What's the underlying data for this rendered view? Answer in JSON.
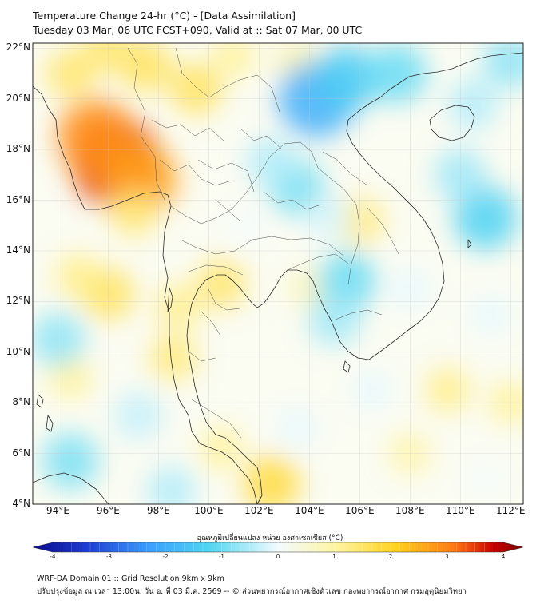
{
  "title": {
    "line1": "Temperature Change 24-hr (°C) - [Data Assimilation]",
    "line2": "Tuesday 03 Mar, 06 UTC FCST+090, Valid at :: Sat 07 Mar, 00 UTC"
  },
  "map_extent": {
    "lon_min": 93,
    "lon_max": 112.5,
    "lat_min": 4,
    "lat_max": 22.2
  },
  "axes": {
    "lat_ticks": [
      {
        "value": 22,
        "label": "22°N"
      },
      {
        "value": 20,
        "label": "20°N"
      },
      {
        "value": 18,
        "label": "18°N"
      },
      {
        "value": 16,
        "label": "16°N"
      },
      {
        "value": 14,
        "label": "14°N"
      },
      {
        "value": 12,
        "label": "12°N"
      },
      {
        "value": 10,
        "label": "10°N"
      },
      {
        "value": 8,
        "label": "8°N"
      },
      {
        "value": 6,
        "label": "6°N"
      },
      {
        "value": 4,
        "label": "4°N"
      }
    ],
    "lon_ticks": [
      {
        "value": 94,
        "label": "94°E"
      },
      {
        "value": 96,
        "label": "96°E"
      },
      {
        "value": 98,
        "label": "98°E"
      },
      {
        "value": 100,
        "label": "100°E"
      },
      {
        "value": 102,
        "label": "102°E"
      },
      {
        "value": 104,
        "label": "104°E"
      },
      {
        "value": 106,
        "label": "106°E"
      },
      {
        "value": 108,
        "label": "108°E"
      },
      {
        "value": 110,
        "label": "110°E"
      },
      {
        "value": 112,
        "label": "112°E"
      }
    ]
  },
  "colorbar": {
    "label": "อุณหภูมิเปลี่ยนแปลง หน่วย องศาเซลเซียส (°C)",
    "min": -4,
    "max": 4,
    "ticks": [
      "-4",
      "-3",
      "-2",
      "-1",
      "0",
      "1",
      "2",
      "3",
      "4"
    ],
    "colors": [
      "#0a0a8c",
      "#1e3cd2",
      "#3ca0ff",
      "#50d6f2",
      "#f2fbff",
      "#fff4a0",
      "#ffd21e",
      "#ff7814",
      "#c80000",
      "#780000"
    ]
  },
  "field_anomalies": [
    {
      "lon": 96.3,
      "lat": 17.5,
      "value": 2.6
    },
    {
      "lon": 95.5,
      "lat": 18.5,
      "value": 2.0
    },
    {
      "lon": 97.3,
      "lat": 16.8,
      "value": 1.8
    },
    {
      "lon": 97.5,
      "lat": 21.3,
      "value": 0.9
    },
    {
      "lon": 99.5,
      "lat": 20.4,
      "value": 0.9
    },
    {
      "lon": 96.0,
      "lat": 22.0,
      "value": 0.8
    },
    {
      "lon": 94.5,
      "lat": 21.0,
      "value": 0.8
    },
    {
      "lon": 97.0,
      "lat": 15.5,
      "value": 0.7
    },
    {
      "lon": 96.0,
      "lat": 12.3,
      "value": 0.9
    },
    {
      "lon": 100.5,
      "lat": 12.7,
      "value": 0.8
    },
    {
      "lon": 98.8,
      "lat": 11.8,
      "value": 0.6
    },
    {
      "lon": 98.6,
      "lat": 9.8,
      "value": 0.7
    },
    {
      "lon": 94.8,
      "lat": 13.0,
      "value": 0.6
    },
    {
      "lon": 94.5,
      "lat": 9.0,
      "value": 0.5
    },
    {
      "lon": 102.5,
      "lat": 4.8,
      "value": 1.1
    },
    {
      "lon": 100.5,
      "lat": 6.2,
      "value": 0.5
    },
    {
      "lon": 106.0,
      "lat": 15.2,
      "value": 0.7
    },
    {
      "lon": 104.0,
      "lat": 12.5,
      "value": 0.3
    },
    {
      "lon": 109.5,
      "lat": 8.5,
      "value": 0.6
    },
    {
      "lon": 112.0,
      "lat": 8.0,
      "value": 0.5
    },
    {
      "lon": 108.0,
      "lat": 6.0,
      "value": 0.4
    },
    {
      "lon": 101.0,
      "lat": 21.7,
      "value": 0.5
    },
    {
      "lon": 103.5,
      "lat": 21.5,
      "value": 0.4
    },
    {
      "lon": 104.3,
      "lat": 20.0,
      "value": -2.0
    },
    {
      "lon": 105.5,
      "lat": 20.8,
      "value": -1.5
    },
    {
      "lon": 107.5,
      "lat": 21.0,
      "value": -1.2
    },
    {
      "lon": 111.0,
      "lat": 15.3,
      "value": -1.4
    },
    {
      "lon": 110.0,
      "lat": 17.0,
      "value": -0.9
    },
    {
      "lon": 110.5,
      "lat": 19.8,
      "value": -0.8
    },
    {
      "lon": 112.0,
      "lat": 21.5,
      "value": -1.0
    },
    {
      "lon": 103.5,
      "lat": 16.5,
      "value": -1.1
    },
    {
      "lon": 102.5,
      "lat": 17.5,
      "value": -0.8
    },
    {
      "lon": 104.8,
      "lat": 15.3,
      "value": -0.6
    },
    {
      "lon": 105.5,
      "lat": 12.8,
      "value": -1.2
    },
    {
      "lon": 105.0,
      "lat": 11.3,
      "value": -0.9
    },
    {
      "lon": 94.0,
      "lat": 10.5,
      "value": -1.0
    },
    {
      "lon": 94.5,
      "lat": 5.7,
      "value": -1.1
    },
    {
      "lon": 97.2,
      "lat": 7.5,
      "value": -0.7
    },
    {
      "lon": 98.5,
      "lat": 4.5,
      "value": -0.8
    },
    {
      "lon": 103.5,
      "lat": 7.0,
      "value": -0.5
    },
    {
      "lon": 101.5,
      "lat": 15.0,
      "value": -0.4
    },
    {
      "lon": 108.0,
      "lat": 12.5,
      "value": -0.5
    },
    {
      "lon": 106.5,
      "lat": 8.5,
      "value": -0.5
    },
    {
      "lon": 111.2,
      "lat": 11.5,
      "value": -0.5
    },
    {
      "lon": 111.0,
      "lat": 5.0,
      "value": -0.4
    }
  ],
  "footer": {
    "line1": "WRF-DA Domain 01 :: Grid Resolution 9km x 9km",
    "line2": "ปรับปรุงข้อมูล ณ เวลา 13:00น. วัน อ. ที่ 03 มี.ค. 2569 -- © ส่วนพยากรณ์อากาศเชิงตัวเลข กองพยากรณ์อากาศ กรมอุตุนิยมวิทยา"
  }
}
